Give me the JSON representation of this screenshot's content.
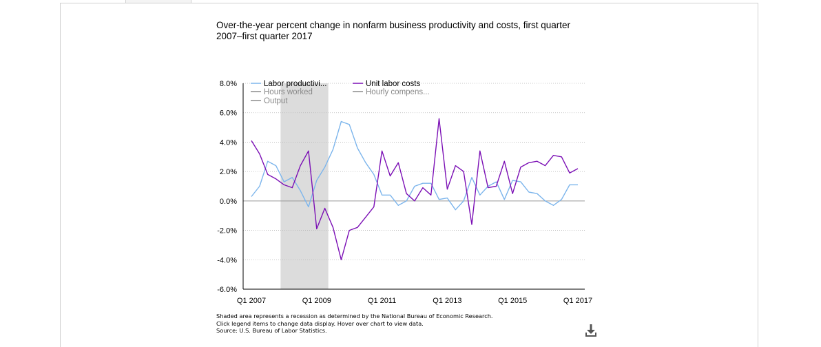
{
  "chart_data": {
    "type": "line",
    "title": "Over-the-year percent change in nonfarm business productivity and costs, first quarter 2007–first quarter 2017",
    "xlabel": "",
    "ylabel": "",
    "ylim": [
      -6,
      8
    ],
    "y_ticks": [
      "8.0%",
      "6.0%",
      "4.0%",
      "2.0%",
      "0.0%",
      "-2.0%",
      "-4.0%",
      "-6.0%"
    ],
    "x_ticks": [
      "Q1 2007",
      "Q1 2009",
      "Q1 2011",
      "Q1 2013",
      "Q1 2015",
      "Q1 2017"
    ],
    "grid": true,
    "legend_position": "top-left",
    "recession": {
      "start_index": 4,
      "end_index": 9
    },
    "series": [
      {
        "name": "Labor productivi...",
        "color": "#7cb5ec",
        "visible": true,
        "values": [
          0.3,
          1.0,
          2.7,
          2.4,
          1.3,
          1.6,
          0.7,
          -0.4,
          1.4,
          2.3,
          3.5,
          5.4,
          5.2,
          3.6,
          2.6,
          1.8,
          0.4,
          0.4,
          -0.3,
          0.0,
          1.0,
          1.2,
          1.2,
          0.1,
          0.2,
          -0.6,
          0.0,
          1.6,
          0.4,
          1.0,
          1.3,
          0.1,
          1.4,
          1.3,
          0.6,
          0.5,
          0.0,
          -0.3,
          0.1,
          1.1,
          1.1
        ]
      },
      {
        "name": "Unit labor costs",
        "color": "#7b0fb5",
        "visible": true,
        "values": [
          4.1,
          3.2,
          1.8,
          1.5,
          1.1,
          0.9,
          2.4,
          3.4,
          -1.9,
          -0.5,
          -1.8,
          -4.0,
          -2.0,
          -1.8,
          -1.1,
          -0.4,
          3.4,
          1.7,
          2.6,
          0.5,
          0.0,
          0.9,
          0.4,
          5.6,
          0.8,
          2.4,
          2.0,
          -1.6,
          3.4,
          0.9,
          1.0,
          2.7,
          0.5,
          2.3,
          2.6,
          2.7,
          2.4,
          3.1,
          3.0,
          1.9,
          2.2
        ]
      },
      {
        "name": "Hours worked",
        "color": "#8a8a8a",
        "visible": false,
        "values": []
      },
      {
        "name": "Hourly compens...",
        "color": "#8a8a8a",
        "visible": false,
        "values": []
      },
      {
        "name": "Output",
        "color": "#8a8a8a",
        "visible": false,
        "values": []
      }
    ]
  },
  "notes": [
    "Shaded area represents a recession as determined by the National Bureau of Economic Research.",
    "Click legend items to change data display. Hover over chart to view data.",
    "Source: U.S. Bureau of Labor Statistics."
  ],
  "icons": {
    "download": "download-icon"
  }
}
